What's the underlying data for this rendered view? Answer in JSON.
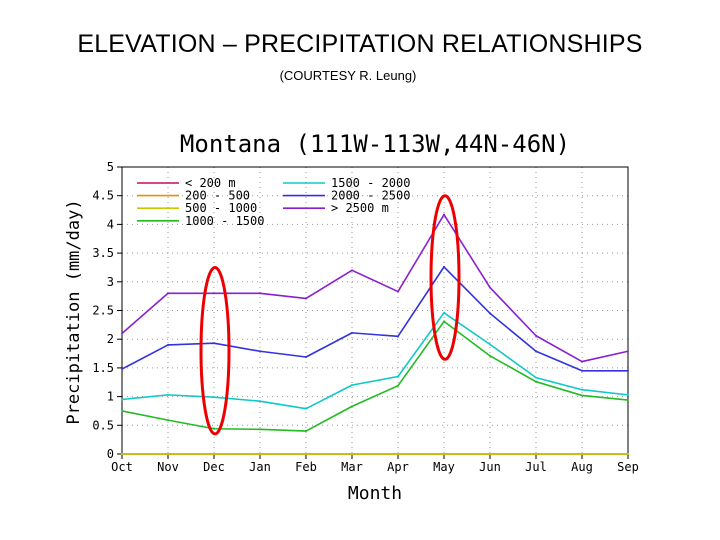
{
  "slide": {
    "title": "ELEVATION – PRECIPITATION RELATIONSHIPS",
    "subtitle": "(COURTESY R. Leung)"
  },
  "chart_data": {
    "type": "line",
    "title": "Montana (111W-113W,44N-46N)",
    "xlabel": "Month",
    "ylabel": "Precipitation (mm/day)",
    "categories": [
      "Oct",
      "Nov",
      "Dec",
      "Jan",
      "Feb",
      "Mar",
      "Apr",
      "May",
      "Jun",
      "Jul",
      "Aug",
      "Sep"
    ],
    "ylim": [
      0,
      5
    ],
    "yticks": [
      "0",
      "0.5",
      "1",
      "1.5",
      "2",
      "2.5",
      "3",
      "3.5",
      "4",
      "4.5",
      "5"
    ],
    "grid": true,
    "legend_position": "top-left",
    "series": [
      {
        "name": "< 200 m",
        "color": "#c0105a",
        "values": [
          0,
          0,
          0,
          0,
          0,
          0,
          0,
          0,
          0,
          0,
          0,
          0
        ]
      },
      {
        "name": "200 - 500",
        "color": "#f08c00",
        "values": [
          0,
          0,
          0,
          0,
          0,
          0,
          0,
          0,
          0,
          0,
          0,
          0
        ]
      },
      {
        "name": "500 - 1000",
        "color": "#c8c800",
        "values": [
          0,
          0,
          0,
          0,
          0,
          0,
          0,
          0,
          0,
          0,
          0,
          0
        ]
      },
      {
        "name": "1000 - 1500",
        "color": "#22bb22",
        "values": [
          0.75,
          0.59,
          0.44,
          0.43,
          0.4,
          0.83,
          1.19,
          2.31,
          1.71,
          1.26,
          1.02,
          0.94
        ]
      },
      {
        "name": "1500 - 2000",
        "color": "#10c8c8",
        "values": [
          0.95,
          1.03,
          0.99,
          0.92,
          0.79,
          1.2,
          1.35,
          2.46,
          1.91,
          1.33,
          1.12,
          1.03
        ]
      },
      {
        "name": "2000 - 2500",
        "color": "#3333dd",
        "values": [
          1.48,
          1.9,
          1.93,
          1.79,
          1.69,
          2.11,
          2.05,
          3.26,
          2.45,
          1.79,
          1.45,
          1.45
        ]
      },
      {
        "name": "> 2500 m",
        "color": "#8a1fd0",
        "values": [
          2.1,
          2.8,
          2.8,
          2.8,
          2.71,
          3.2,
          2.83,
          4.17,
          2.9,
          2.06,
          1.61,
          1.79
        ]
      }
    ],
    "annotations": [
      {
        "type": "ellipse",
        "color": "#ee0000",
        "around": "Dec",
        "y_range": [
          0.35,
          3.25
        ]
      },
      {
        "type": "ellipse",
        "color": "#ee0000",
        "around": "May",
        "y_range": [
          1.65,
          4.5
        ]
      }
    ]
  }
}
